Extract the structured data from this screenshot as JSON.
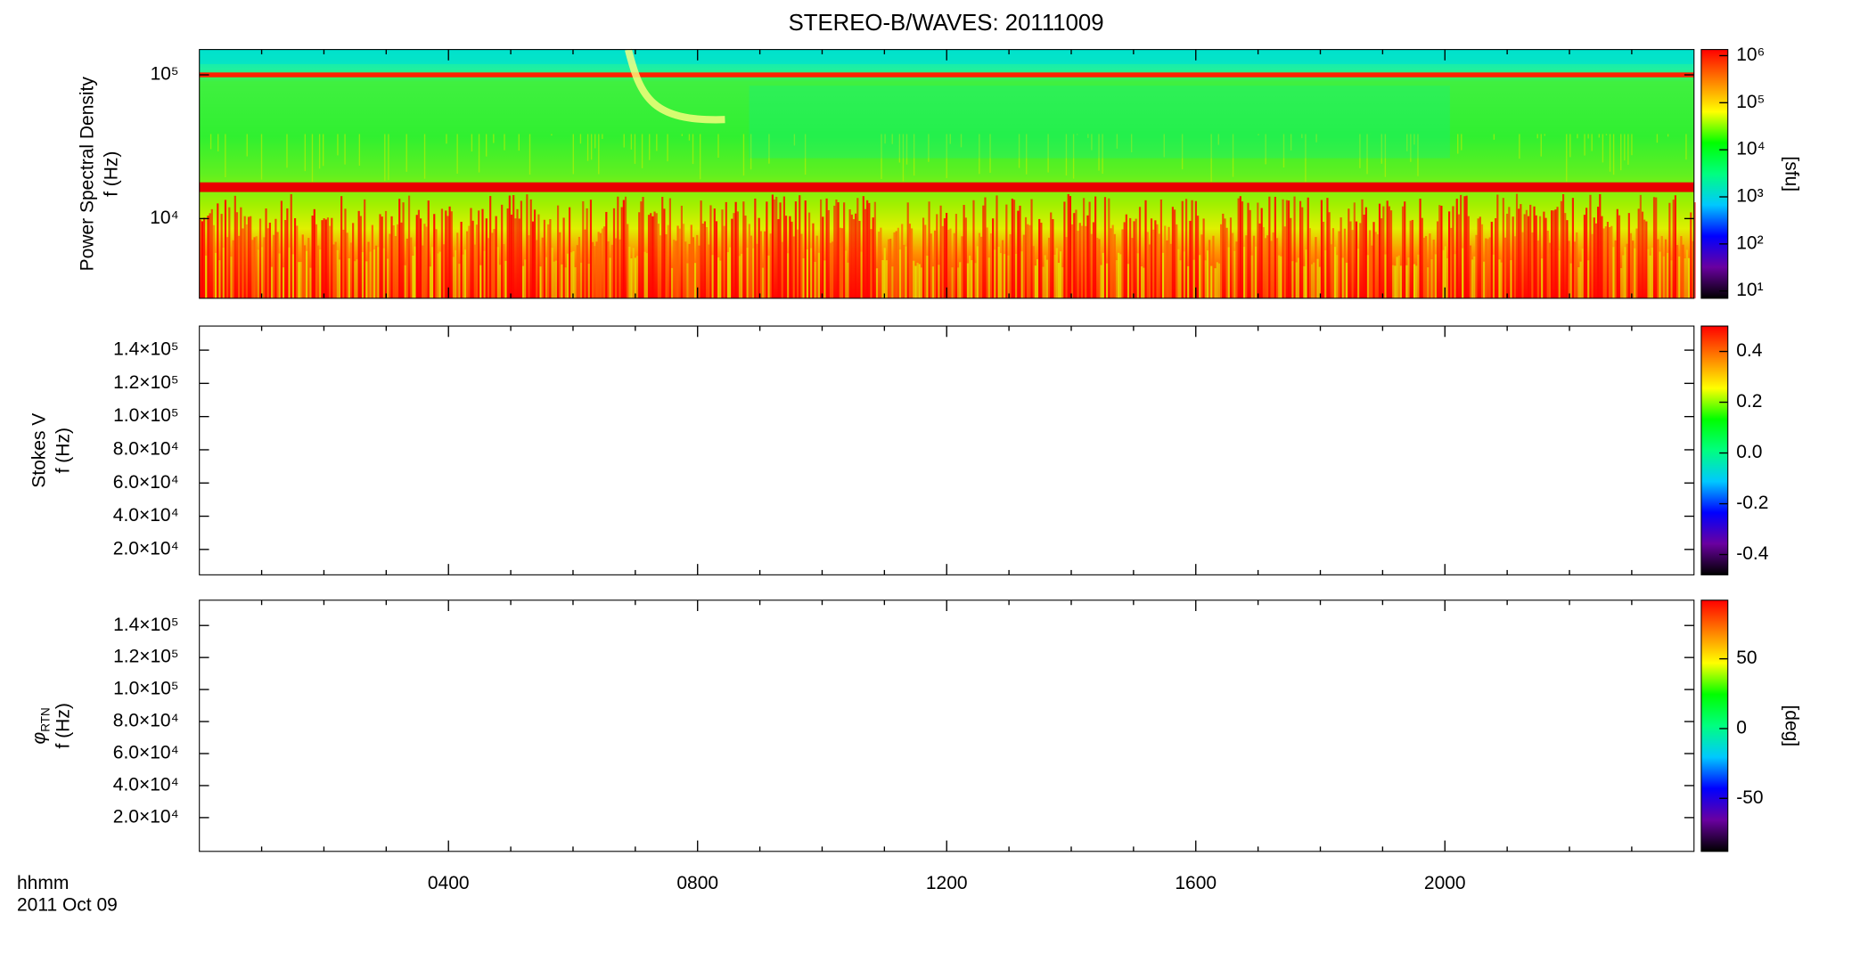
{
  "title": "STEREO-B/WAVES: 20111009",
  "x_axis": {
    "label_lines": [
      "hhmm",
      "2011 Oct 09"
    ],
    "xlim": [
      0,
      24
    ],
    "xticks": [
      {
        "value": 4,
        "label": "0400"
      },
      {
        "value": 8,
        "label": "0800"
      },
      {
        "value": 12,
        "label": "1200"
      },
      {
        "value": 16,
        "label": "1600"
      },
      {
        "value": 20,
        "label": "2000"
      }
    ],
    "xminorticks": [
      1,
      2,
      3,
      5,
      6,
      7,
      9,
      10,
      11,
      13,
      14,
      15,
      17,
      18,
      19,
      21,
      22,
      23
    ]
  },
  "colormap": [
    "#000000",
    "#6a00a0",
    "#0000ff",
    "#00c8ff",
    "#00ff80",
    "#00ff00",
    "#ffff00",
    "#ff8000",
    "#ff0000"
  ],
  "chart_data": [
    {
      "type": "spectrogram",
      "ylabel": "Power Spectral Density",
      "ylabel2": "f (Hz)",
      "ylog": true,
      "ylim": [
        2790,
        150000
      ],
      "yticks": [
        {
          "value": 10000,
          "label": "10⁴"
        },
        {
          "value": 100000,
          "label": "10⁵"
        }
      ],
      "clog": true,
      "clim": [
        7,
        1350000
      ],
      "cticks": [
        {
          "value": 10,
          "label": "10¹"
        },
        {
          "value": 100,
          "label": "10²"
        },
        {
          "value": 1000,
          "label": "10³"
        },
        {
          "value": 10000,
          "label": "10⁴"
        },
        {
          "value": 100000,
          "label": "10⁵"
        },
        {
          "value": 1000000,
          "label": "10⁶"
        }
      ],
      "clabel": "[sfu]"
    },
    {
      "type": "spectrogram",
      "ylabel": "Stokes V",
      "ylabel2": "f (Hz)",
      "ylog": false,
      "ylim": [
        4700,
        154500
      ],
      "yticks": [
        {
          "value": 20000,
          "label": "2.0×10⁴"
        },
        {
          "value": 40000,
          "label": "4.0×10⁴"
        },
        {
          "value": 60000,
          "label": "6.0×10⁴"
        },
        {
          "value": 80000,
          "label": "8.0×10⁴"
        },
        {
          "value": 100000,
          "label": "1.0×10⁵"
        },
        {
          "value": 120000,
          "label": "1.2×10⁵"
        },
        {
          "value": 140000,
          "label": "1.4×10⁵"
        }
      ],
      "clog": false,
      "clim": [
        -0.48,
        0.5
      ],
      "cticks": [
        -0.4,
        -0.2,
        {
          "value": 0,
          "label": "0.0"
        },
        0.2,
        0.4
      ]
    },
    {
      "type": "spectrogram",
      "ylabel_symbol": {
        "symbol": "φ",
        "subscript": "RTN"
      },
      "ylabel2": "f (Hz)",
      "ylog": false,
      "ylim": [
        -1100,
        155800
      ],
      "yticks": [
        {
          "value": 20000,
          "label": "2.0×10⁴"
        },
        {
          "value": 40000,
          "label": "4.0×10⁴"
        },
        {
          "value": 60000,
          "label": "6.0×10⁴"
        },
        {
          "value": 80000,
          "label": "8.0×10⁴"
        },
        {
          "value": 100000,
          "label": "1.0×10⁵"
        },
        {
          "value": 120000,
          "label": "1.2×10⁵"
        },
        {
          "value": 140000,
          "label": "1.4×10⁵"
        }
      ],
      "clog": false,
      "clim": [
        -88,
        92
      ],
      "cticks": [
        -50,
        0,
        50
      ],
      "clabel": "[deg]"
    }
  ]
}
